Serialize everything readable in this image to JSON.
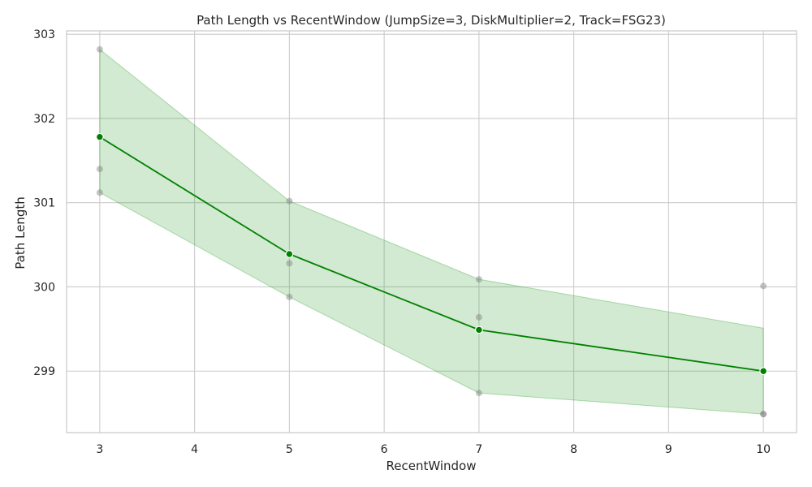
{
  "chart_data": {
    "type": "line",
    "title": "Path Length vs RecentWindow (JumpSize=3, DiskMultiplier=2, Track=FSG23)",
    "xlabel": "RecentWindow",
    "ylabel": "Path Length",
    "xlim": [
      2.65,
      10.35
    ],
    "ylim": [
      298.27,
      303.04
    ],
    "x_ticks": [
      3,
      4,
      5,
      6,
      7,
      8,
      9,
      10
    ],
    "y_ticks": [
      299,
      300,
      301,
      302,
      303
    ],
    "grid": true,
    "colors": {
      "line": "#008000",
      "band": "#2ca02c",
      "raw_points": "#808080",
      "grid": "#cccccc",
      "spine": "#cccccc"
    },
    "mean_line": {
      "x": [
        3,
        5,
        7,
        10
      ],
      "y": [
        301.78,
        300.39,
        299.49,
        299.0
      ]
    },
    "confidence_band": {
      "x": [
        3,
        5,
        7,
        10
      ],
      "lower": [
        301.12,
        299.88,
        298.74,
        298.49
      ],
      "upper": [
        302.82,
        301.02,
        300.09,
        299.51
      ]
    },
    "raw_points": [
      {
        "x": 3,
        "y": 302.82
      },
      {
        "x": 3,
        "y": 301.4
      },
      {
        "x": 3,
        "y": 301.12
      },
      {
        "x": 5,
        "y": 301.02
      },
      {
        "x": 5,
        "y": 300.28
      },
      {
        "x": 5,
        "y": 299.88
      },
      {
        "x": 7,
        "y": 300.09
      },
      {
        "x": 7,
        "y": 299.64
      },
      {
        "x": 7,
        "y": 298.74
      },
      {
        "x": 10,
        "y": 300.01
      },
      {
        "x": 10,
        "y": 298.49
      },
      {
        "x": 10,
        "y": 298.49
      }
    ]
  }
}
